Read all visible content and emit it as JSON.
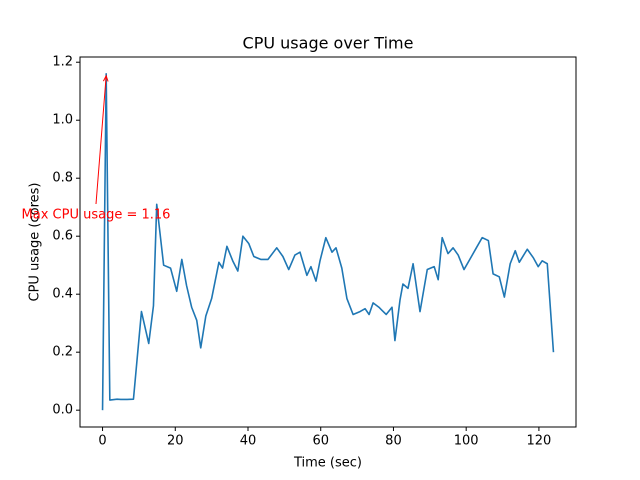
{
  "chart_data": {
    "type": "line",
    "title": "CPU usage over Time",
    "x_label": "Time (sec)",
    "y_label": "CPU usage (cores)",
    "annotation": "Max CPU usage = 1.16",
    "color": "#1f77b4",
    "annotation_color": "#ff0000",
    "x": [
      0,
      1,
      2,
      4,
      5,
      6.6,
      8.5,
      10.7,
      12.7,
      14,
      14.9,
      16.8,
      18.7,
      20.4,
      21.8,
      23.1,
      24.5,
      25.9,
      27,
      28.4,
      30,
      32,
      33,
      34.2,
      35.8,
      37.2,
      38.6,
      40.2,
      41.6,
      43.5,
      45.5,
      47.9,
      49.6,
      51.2,
      52.9,
      54.3,
      56.2,
      57.3,
      58.7,
      59.8,
      61.4,
      63.1,
      64.2,
      65.8,
      67.2,
      68.9,
      70.8,
      72.2,
      73.3,
      74.4,
      76,
      78,
      79.6,
      80.4,
      81.8,
      82.6,
      84,
      85.4,
      87.3,
      89.3,
      91.2,
      92.3,
      93.4,
      95,
      96.4,
      97.8,
      99.4,
      101,
      102.8,
      104.4,
      106.1,
      107.4,
      109.1,
      110.5,
      112.1,
      113.5,
      114.6,
      116.8,
      118.5,
      119.8,
      120.9,
      122.3,
      124
    ],
    "values": [
      0,
      1.16,
      0.035,
      0.038,
      0.037,
      0.037,
      0.038,
      0.34,
      0.23,
      0.36,
      0.71,
      0.5,
      0.49,
      0.41,
      0.52,
      0.43,
      0.355,
      0.31,
      0.215,
      0.325,
      0.385,
      0.51,
      0.49,
      0.565,
      0.515,
      0.48,
      0.6,
      0.575,
      0.53,
      0.52,
      0.52,
      0.56,
      0.53,
      0.485,
      0.535,
      0.545,
      0.465,
      0.495,
      0.445,
      0.515,
      0.595,
      0.545,
      0.56,
      0.49,
      0.385,
      0.33,
      0.34,
      0.35,
      0.33,
      0.37,
      0.355,
      0.33,
      0.355,
      0.24,
      0.38,
      0.435,
      0.42,
      0.505,
      0.34,
      0.485,
      0.495,
      0.45,
      0.595,
      0.54,
      0.56,
      0.535,
      0.485,
      0.52,
      0.56,
      0.595,
      0.585,
      0.47,
      0.46,
      0.39,
      0.505,
      0.55,
      0.51,
      0.555,
      0.525,
      0.495,
      0.515,
      0.505,
      0.2
    ],
    "xlim": [
      -6.2,
      130.2
    ],
    "ylim": [
      -0.058,
      1.218
    ],
    "xticks": [
      0,
      20,
      40,
      60,
      80,
      100,
      120
    ],
    "yticks": [
      {
        "value": 0,
        "label": "0.0"
      },
      0.2,
      0.4,
      0.6,
      0.8,
      {
        "value": 1,
        "label": "1.0"
      },
      1.2
    ]
  }
}
